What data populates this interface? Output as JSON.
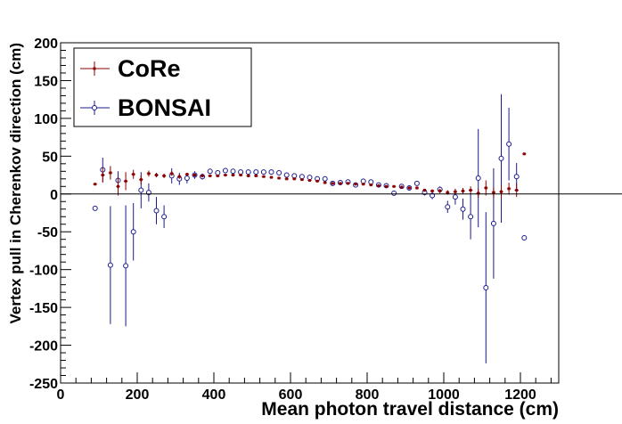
{
  "chart_data": {
    "type": "scatter",
    "title": "",
    "xlabel": "Mean photon travel distance (cm)",
    "ylabel": "Vertex pull in Cherenkov direction (cm)",
    "xlim": [
      0,
      1300
    ],
    "ylim": [
      -250,
      200
    ],
    "x_ticks": [
      0,
      200,
      400,
      600,
      800,
      1000,
      1200
    ],
    "y_ticks": [
      -250,
      -200,
      -150,
      -100,
      -50,
      0,
      50,
      100,
      150,
      200
    ],
    "reference_line_y": 0,
    "legend_position": "top-left",
    "series": [
      {
        "name": "CoRe",
        "color": "#8b0000",
        "marker": "filled-square",
        "x_err": 5,
        "points": [
          [
            90,
            13,
            1
          ],
          [
            110,
            25,
            10
          ],
          [
            130,
            28,
            9
          ],
          [
            150,
            10,
            12
          ],
          [
            170,
            17,
            12
          ],
          [
            190,
            26,
            6
          ],
          [
            210,
            19,
            6
          ],
          [
            230,
            27,
            4
          ],
          [
            250,
            25,
            3
          ],
          [
            270,
            24,
            3
          ],
          [
            290,
            27,
            3
          ],
          [
            310,
            23,
            3
          ],
          [
            330,
            26,
            2
          ],
          [
            350,
            25,
            2
          ],
          [
            370,
            24,
            2
          ],
          [
            390,
            24,
            1
          ],
          [
            410,
            24,
            1
          ],
          [
            430,
            25,
            1
          ],
          [
            450,
            25,
            1
          ],
          [
            470,
            25,
            1
          ],
          [
            490,
            24,
            1
          ],
          [
            510,
            24,
            1
          ],
          [
            530,
            23,
            1
          ],
          [
            550,
            22,
            1
          ],
          [
            570,
            21,
            1
          ],
          [
            590,
            20,
            1
          ],
          [
            610,
            20,
            1
          ],
          [
            630,
            19,
            1
          ],
          [
            650,
            18,
            1
          ],
          [
            670,
            17,
            1
          ],
          [
            690,
            15,
            1
          ],
          [
            710,
            14,
            1
          ],
          [
            730,
            14,
            1
          ],
          [
            750,
            14,
            1
          ],
          [
            770,
            13,
            1
          ],
          [
            790,
            13,
            1
          ],
          [
            810,
            12,
            1
          ],
          [
            830,
            11,
            1
          ],
          [
            850,
            10,
            1
          ],
          [
            870,
            10,
            1
          ],
          [
            890,
            9,
            2
          ],
          [
            910,
            8,
            2
          ],
          [
            930,
            8,
            2
          ],
          [
            950,
            5,
            2
          ],
          [
            970,
            4,
            2
          ],
          [
            990,
            4,
            3
          ],
          [
            1010,
            2,
            3
          ],
          [
            1030,
            3,
            4
          ],
          [
            1050,
            4,
            4
          ],
          [
            1070,
            5,
            5
          ],
          [
            1090,
            1,
            6
          ],
          [
            1110,
            8,
            10
          ],
          [
            1130,
            2,
            7
          ],
          [
            1150,
            3,
            9
          ],
          [
            1170,
            7,
            8
          ],
          [
            1190,
            5,
            9
          ],
          [
            1210,
            53,
            1
          ]
        ]
      },
      {
        "name": "BONSAI",
        "color": "#1a1a8c",
        "marker": "open-circle",
        "x_err": 5,
        "points": [
          [
            90,
            -19,
            1
          ],
          [
            110,
            32,
            16
          ],
          [
            130,
            -94,
            78
          ],
          [
            150,
            18,
            12
          ],
          [
            170,
            -95,
            80
          ],
          [
            190,
            -50,
            38
          ],
          [
            210,
            5,
            24
          ],
          [
            230,
            2,
            12
          ],
          [
            250,
            -22,
            18
          ],
          [
            270,
            -30,
            15
          ],
          [
            290,
            24,
            10
          ],
          [
            310,
            20,
            8
          ],
          [
            330,
            21,
            7
          ],
          [
            350,
            25,
            5
          ],
          [
            370,
            23,
            4
          ],
          [
            390,
            30,
            3
          ],
          [
            410,
            28,
            2
          ],
          [
            430,
            31,
            2
          ],
          [
            450,
            30,
            2
          ],
          [
            470,
            29,
            2
          ],
          [
            490,
            29,
            1
          ],
          [
            510,
            29,
            1
          ],
          [
            530,
            29,
            1
          ],
          [
            550,
            29,
            1
          ],
          [
            570,
            28,
            1
          ],
          [
            590,
            25,
            1
          ],
          [
            610,
            24,
            1
          ],
          [
            630,
            23,
            1
          ],
          [
            650,
            22,
            1
          ],
          [
            670,
            20,
            1
          ],
          [
            690,
            20,
            1
          ],
          [
            710,
            14,
            1
          ],
          [
            730,
            15,
            1
          ],
          [
            750,
            16,
            1
          ],
          [
            770,
            12,
            1
          ],
          [
            790,
            17,
            1
          ],
          [
            810,
            16,
            2
          ],
          [
            830,
            12,
            2
          ],
          [
            850,
            11,
            2
          ],
          [
            870,
            1,
            2
          ],
          [
            890,
            10,
            2
          ],
          [
            910,
            8,
            2
          ],
          [
            930,
            14,
            3
          ],
          [
            950,
            2,
            4
          ],
          [
            970,
            -2,
            5
          ],
          [
            990,
            6,
            4
          ],
          [
            1010,
            -17,
            8
          ],
          [
            1030,
            -4,
            10
          ],
          [
            1050,
            -20,
            14
          ],
          [
            1070,
            -30,
            30
          ],
          [
            1090,
            21,
            65
          ],
          [
            1110,
            -124,
            100
          ],
          [
            1130,
            -39,
            73
          ],
          [
            1150,
            47,
            85
          ],
          [
            1170,
            66,
            48
          ],
          [
            1190,
            23,
            18
          ],
          [
            1210,
            -58,
            1
          ]
        ]
      }
    ]
  }
}
